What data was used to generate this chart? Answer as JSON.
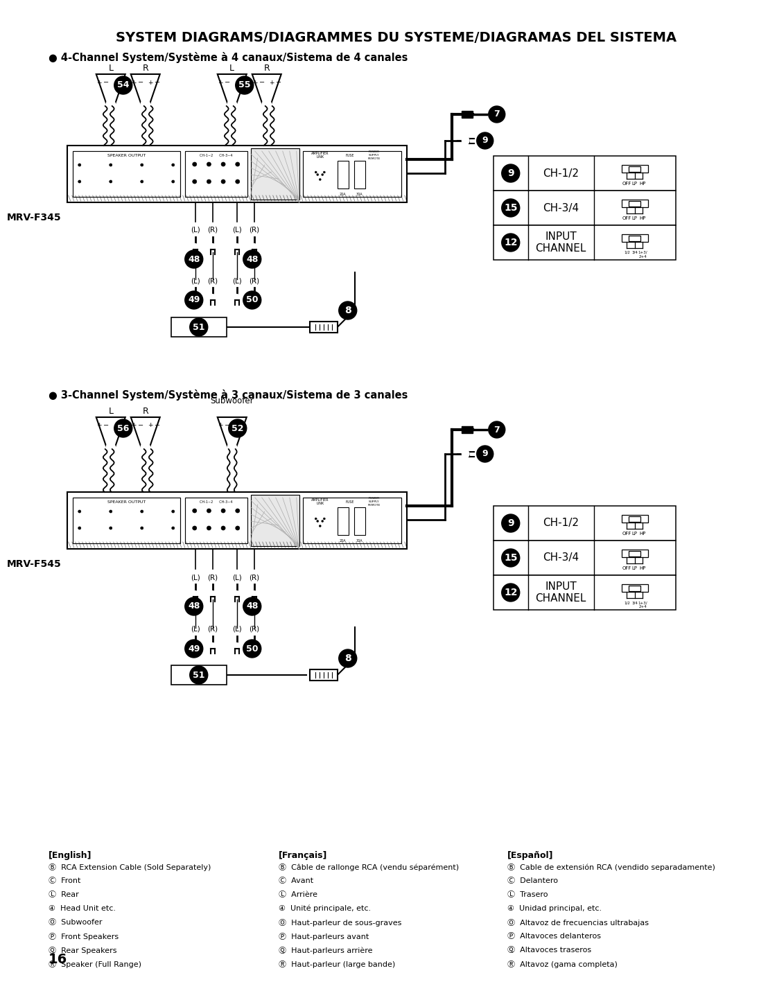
{
  "title": "SYSTEM DIAGRAMS/DIAGRAMMES DU SYSTEME/DIAGRAMAS DEL SISTEMA",
  "section1_title": "● 4-Channel System/Système à 4 canaux/Sistema de 4 canales",
  "section2_title": "● 3-Channel System/Système à 3 canaux/Sistema de 3 canales",
  "model1": "MRV-F345",
  "model2": "MRV-F545",
  "bg_color": "#ffffff",
  "page_number": "16",
  "legend_english": "[English]",
  "legend_french": "[Français]",
  "legend_spanish": "[Español]",
  "legend_items_en": [
    "Ⓑ  RCA Extension Cable (Sold Separately)",
    "Ⓒ  Front",
    "Ⓛ  Rear",
    "④  Head Unit etc.",
    "Ⓞ  Subwoofer",
    "Ⓟ  Front Speakers",
    "Ⓠ  Rear Speakers",
    "Ⓡ  Speaker (Full Range)"
  ],
  "legend_items_fr": [
    "Ⓑ  Câble de rallonge RCA (vendu séparément)",
    "Ⓒ  Avant",
    "Ⓛ  Arrière",
    "④  Unité principale, etc.",
    "Ⓞ  Haut-parleur de sous-graves",
    "Ⓟ  Haut-parleurs avant",
    "Ⓠ  Haut-parleurs arrière",
    "Ⓡ  Haut-parleur (large bande)"
  ],
  "legend_items_es": [
    "Ⓑ  Cable de extensión RCA (vendido separadamente)",
    "Ⓒ  Delantero",
    "Ⓛ  Trasero",
    "④  Unidad principal, etc.",
    "Ⓞ  Altavoz de frecuencias ultrabajas",
    "Ⓟ  Altavoces delanteros",
    "Ⓠ  Altavoces traseros",
    "Ⓡ  Altavoz (gama completa)"
  ],
  "table1_rows": [
    {
      "num": "9",
      "label": "CH-1/2",
      "switch": "LP"
    },
    {
      "num": "15",
      "label": "CH-3/4",
      "switch": "LP"
    },
    {
      "num": "12",
      "label": "INPUT\nCHANNEL",
      "switch": "IN"
    }
  ],
  "table2_rows": [
    {
      "num": "9",
      "label": "CH-1/2",
      "switch": "LP"
    },
    {
      "num": "15",
      "label": "CH-3/4",
      "switch": "LP"
    },
    {
      "num": "12",
      "label": "INPUT\nCHANNEL",
      "switch": "IN"
    }
  ]
}
